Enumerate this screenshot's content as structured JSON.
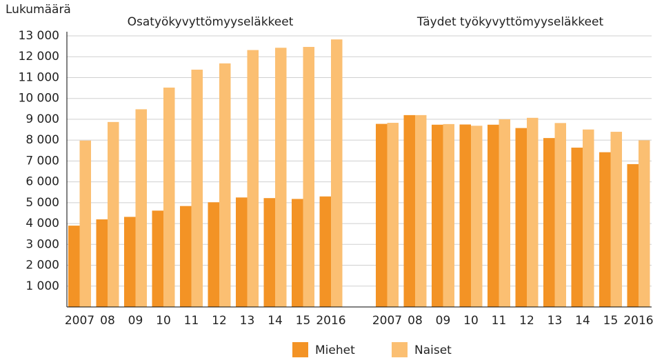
{
  "chart_data": {
    "type": "bar",
    "ylabel": "Lukumäärä",
    "ylim": [
      0,
      13000
    ],
    "yticks": [
      {
        "value": 1000,
        "label": "1 000"
      },
      {
        "value": 2000,
        "label": "2 000"
      },
      {
        "value": 3000,
        "label": "3 000"
      },
      {
        "value": 4000,
        "label": "4 000"
      },
      {
        "value": 5000,
        "label": "5 000"
      },
      {
        "value": 6000,
        "label": "6 000"
      },
      {
        "value": 7000,
        "label": "7 000"
      },
      {
        "value": 8000,
        "label": "8 000"
      },
      {
        "value": 9000,
        "label": "9 000"
      },
      {
        "value": 10000,
        "label": "10 000"
      },
      {
        "value": 11000,
        "label": "11 000"
      },
      {
        "value": 12000,
        "label": "12 000"
      },
      {
        "value": 13000,
        "label": "13 000"
      }
    ],
    "grid": true,
    "groups": [
      {
        "title": "Osatyökyvyttömyyseläkkeet",
        "categories": [
          "2007",
          "08",
          "09",
          "10",
          "11",
          "12",
          "13",
          "14",
          "15",
          "2016"
        ],
        "series": [
          {
            "name": "Miehet",
            "color": "#f39325",
            "values": [
              3900,
              4200,
              4320,
              4620,
              4840,
              5020,
              5250,
              5220,
              5180,
              5300
            ]
          },
          {
            "name": "Naiset",
            "color": "#fbbf72",
            "values": [
              7980,
              8870,
              9480,
              10520,
              11380,
              11680,
              12320,
              12430,
              12470,
              12830
            ]
          }
        ]
      },
      {
        "title": "Täydet työkyvyttömyyseläkkeet",
        "categories": [
          "2007",
          "08",
          "09",
          "10",
          "11",
          "12",
          "13",
          "14",
          "15",
          "2016"
        ],
        "series": [
          {
            "name": "Miehet",
            "color": "#f39325",
            "values": [
              8780,
              9200,
              8740,
              8750,
              8740,
              8580,
              8100,
              7640,
              7420,
              6850
            ]
          },
          {
            "name": "Naiset",
            "color": "#fbbf72",
            "values": [
              8830,
              9200,
              8770,
              8690,
              9000,
              9070,
              8820,
              8510,
              8400,
              7990
            ]
          }
        ]
      }
    ]
  }
}
